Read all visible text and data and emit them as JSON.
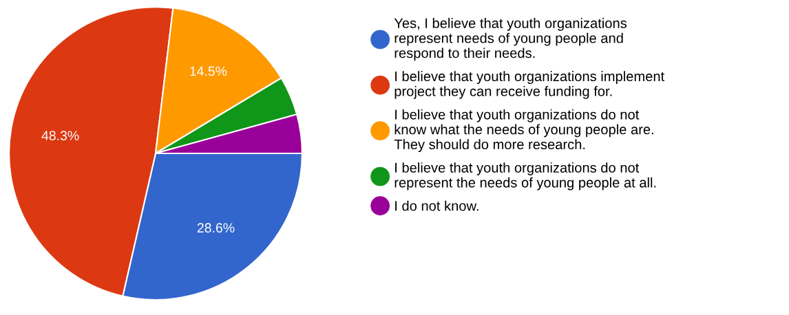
{
  "chart_data": {
    "type": "pie",
    "categories": [
      "Yes, I believe that youth organizations\nrepresent needs of young people and\nrespond to their needs.",
      "I believe that youth organizations implement\nproject they can receive funding for.",
      "I believe that youth organizations do not\nknow what the needs of young people are.\nThey should do more research.",
      "I believe that youth organizations do not\nrepresent the needs of young people at all.",
      "I do not know."
    ],
    "values": [
      28.6,
      48.3,
      14.5,
      4.3,
      4.3
    ],
    "value_labels": [
      "28.6%",
      "48.3%",
      "14.5%",
      null,
      null
    ],
    "colors": [
      "#3366cc",
      "#dc3912",
      "#ff9900",
      "#109618",
      "#990099"
    ],
    "legend": "right"
  }
}
